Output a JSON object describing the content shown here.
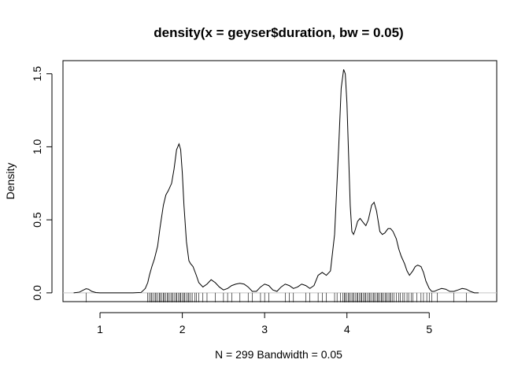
{
  "chart_data": {
    "type": "line",
    "title": "density(x = geyser$duration, bw = 0.05)",
    "xlabel": "N = 299   Bandwidth = 0.05",
    "ylabel": "Density",
    "xlim": [
      0.55,
      5.82
    ],
    "ylim": [
      -0.06,
      1.59
    ],
    "x_ticks": [
      "1",
      "2",
      "3",
      "4",
      "5"
    ],
    "y_ticks": [
      "0.0",
      "0.5",
      "1.0",
      "1.5"
    ],
    "grid": false,
    "zero_line_color": "#c8c8c8",
    "line_color": "#000000",
    "series": [
      {
        "x": [
          0.68,
          0.75,
          0.8,
          0.83,
          0.86,
          0.9,
          0.95,
          1.0,
          1.2,
          1.4,
          1.5,
          1.55,
          1.58,
          1.6,
          1.63,
          1.66,
          1.7,
          1.73,
          1.77,
          1.8,
          1.83,
          1.87,
          1.9,
          1.93,
          1.96,
          1.98,
          2.0,
          2.02,
          2.05,
          2.08,
          2.1,
          2.13,
          2.17,
          2.2,
          2.25,
          2.3,
          2.35,
          2.4,
          2.45,
          2.5,
          2.55,
          2.6,
          2.65,
          2.7,
          2.75,
          2.8,
          2.85,
          2.9,
          2.95,
          3.0,
          3.05,
          3.1,
          3.15,
          3.2,
          3.25,
          3.3,
          3.35,
          3.4,
          3.45,
          3.5,
          3.55,
          3.6,
          3.65,
          3.7,
          3.75,
          3.8,
          3.85,
          3.9,
          3.93,
          3.96,
          3.98,
          4.0,
          4.02,
          4.04,
          4.06,
          4.08,
          4.1,
          4.13,
          4.16,
          4.2,
          4.23,
          4.26,
          4.3,
          4.33,
          4.36,
          4.4,
          4.43,
          4.46,
          4.5,
          4.53,
          4.56,
          4.6,
          4.63,
          4.66,
          4.7,
          4.73,
          4.76,
          4.8,
          4.83,
          4.86,
          4.9,
          4.93,
          4.96,
          5.0,
          5.03,
          5.06,
          5.1,
          5.15,
          5.2,
          5.25,
          5.3,
          5.35,
          5.4,
          5.45,
          5.5,
          5.55,
          5.6
        ],
        "y": [
          0.0,
          0.005,
          0.02,
          0.028,
          0.025,
          0.01,
          0.002,
          0.0,
          0.0,
          0.0,
          0.003,
          0.03,
          0.07,
          0.12,
          0.18,
          0.23,
          0.32,
          0.45,
          0.6,
          0.67,
          0.7,
          0.75,
          0.85,
          0.98,
          1.02,
          0.98,
          0.82,
          0.6,
          0.35,
          0.22,
          0.2,
          0.18,
          0.12,
          0.07,
          0.04,
          0.06,
          0.09,
          0.07,
          0.04,
          0.02,
          0.03,
          0.05,
          0.06,
          0.065,
          0.06,
          0.04,
          0.01,
          0.01,
          0.04,
          0.06,
          0.05,
          0.02,
          0.01,
          0.04,
          0.06,
          0.05,
          0.03,
          0.04,
          0.06,
          0.05,
          0.03,
          0.05,
          0.12,
          0.14,
          0.12,
          0.15,
          0.4,
          1.0,
          1.4,
          1.53,
          1.5,
          1.3,
          0.95,
          0.6,
          0.42,
          0.4,
          0.43,
          0.49,
          0.51,
          0.48,
          0.46,
          0.5,
          0.6,
          0.62,
          0.56,
          0.42,
          0.4,
          0.41,
          0.44,
          0.44,
          0.42,
          0.37,
          0.3,
          0.25,
          0.2,
          0.15,
          0.12,
          0.15,
          0.18,
          0.19,
          0.18,
          0.14,
          0.08,
          0.03,
          0.01,
          0.01,
          0.02,
          0.03,
          0.025,
          0.01,
          0.01,
          0.02,
          0.03,
          0.025,
          0.01,
          0.0,
          0.0
        ]
      }
    ],
    "rug": [
      0.83,
      1.58,
      1.6,
      1.62,
      1.63,
      1.65,
      1.67,
      1.68,
      1.7,
      1.72,
      1.73,
      1.75,
      1.77,
      1.78,
      1.8,
      1.82,
      1.83,
      1.85,
      1.87,
      1.88,
      1.9,
      1.92,
      1.93,
      1.95,
      1.97,
      1.98,
      2.0,
      2.02,
      2.03,
      2.05,
      2.07,
      2.08,
      2.1,
      2.12,
      2.15,
      2.17,
      2.2,
      2.25,
      2.3,
      2.4,
      2.5,
      2.55,
      2.6,
      2.7,
      2.8,
      2.85,
      2.95,
      3.0,
      3.05,
      3.25,
      3.3,
      3.35,
      3.5,
      3.55,
      3.65,
      3.7,
      3.75,
      3.85,
      3.88,
      3.92,
      3.95,
      3.97,
      3.98,
      4.0,
      4.02,
      4.03,
      4.05,
      4.07,
      4.08,
      4.1,
      4.12,
      4.13,
      4.15,
      4.17,
      4.18,
      4.2,
      4.22,
      4.23,
      4.25,
      4.27,
      4.28,
      4.3,
      4.32,
      4.33,
      4.35,
      4.37,
      4.38,
      4.4,
      4.42,
      4.43,
      4.45,
      4.47,
      4.48,
      4.5,
      4.52,
      4.53,
      4.55,
      4.57,
      4.6,
      4.63,
      4.65,
      4.68,
      4.7,
      4.73,
      4.75,
      4.78,
      4.8,
      4.85,
      4.9,
      4.93,
      4.97,
      5.0,
      5.03,
      5.1,
      5.3,
      5.45
    ]
  }
}
